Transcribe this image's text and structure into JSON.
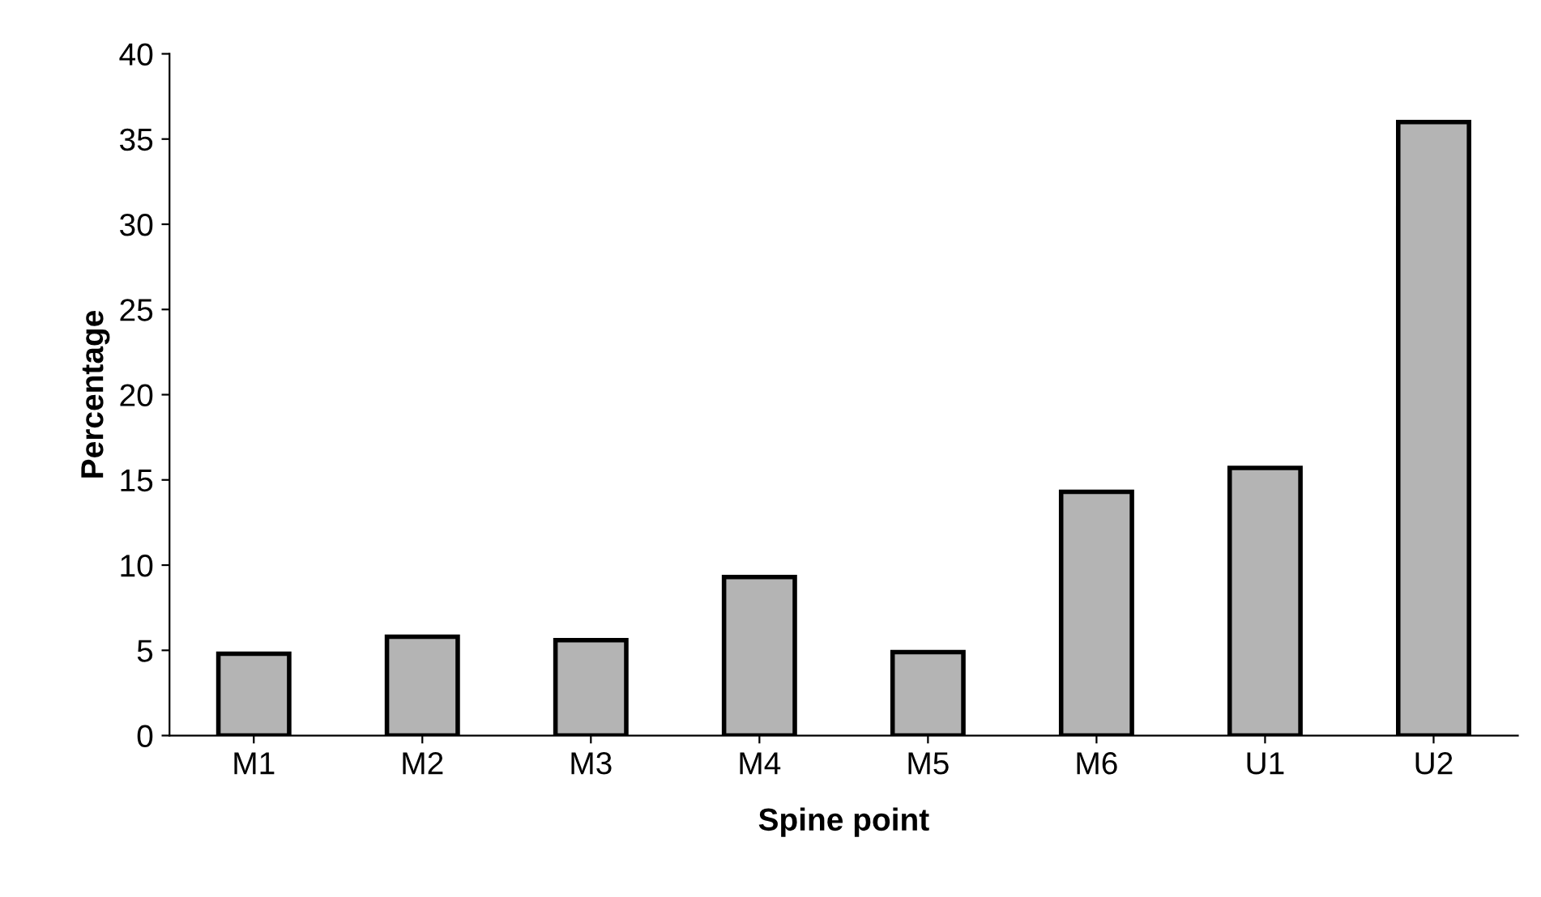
{
  "chart_data": {
    "type": "bar",
    "xlabel": "Spine point",
    "ylabel": "Percentage",
    "categories": [
      "M1",
      "M2",
      "M3",
      "M4",
      "M5",
      "M6",
      "U1",
      "U2"
    ],
    "values": [
      4.8,
      5.8,
      5.6,
      9.3,
      4.9,
      14.3,
      15.7,
      36
    ],
    "color": "#b4b4b4",
    "ylim": [
      0,
      40
    ],
    "yticks": [
      0,
      5,
      10,
      15,
      20,
      25,
      30,
      35,
      40
    ],
    "grid": false,
    "legend": false
  }
}
